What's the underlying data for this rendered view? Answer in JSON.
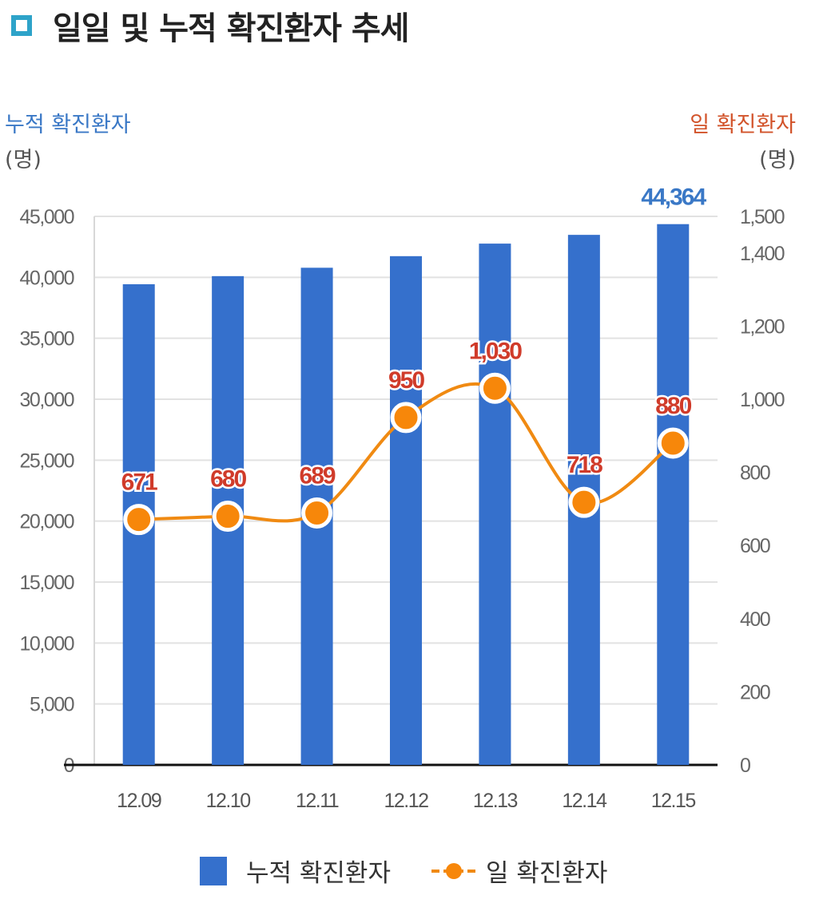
{
  "title": "일일 및 누적 확진환자 추세",
  "left_axis": {
    "title": "누적 확진환자",
    "unit": "(명)"
  },
  "right_axis": {
    "title": "일 확진환자",
    "unit": "(명)"
  },
  "colors": {
    "bar": "#3570cc",
    "line": "#f08a12",
    "marker": "#f7870a",
    "left_title": "#3a78c6",
    "right_title": "#d2532a",
    "line_label": "#d03b2a",
    "bar_label": "#3a78c6",
    "title_square": "#2ea3c9"
  },
  "legend": {
    "bar_label": "누적 확진환자",
    "line_label": "일 확진환자"
  },
  "chart_data": {
    "type": "bar+line",
    "categories": [
      "12.09",
      "12.10",
      "12.11",
      "12.12",
      "12.13",
      "12.14",
      "12.15"
    ],
    "series": [
      {
        "name": "누적 확진환자",
        "type": "bar",
        "axis": "left",
        "values": [
          39432,
          40098,
          40786,
          41736,
          42766,
          43484,
          44364
        ],
        "labels": [
          "",
          "",
          "",
          "",
          "",
          "",
          "44,364"
        ]
      },
      {
        "name": "일 확진환자",
        "type": "line",
        "axis": "right",
        "values": [
          671,
          680,
          689,
          950,
          1030,
          718,
          880
        ],
        "labels": [
          "671",
          "680",
          "689",
          "950",
          "1,030",
          "718",
          "880"
        ]
      }
    ],
    "left_axis": {
      "ylim": [
        0,
        45000
      ],
      "ticks": [
        0,
        5000,
        10000,
        15000,
        20000,
        25000,
        30000,
        35000,
        40000,
        45000
      ],
      "tick_labels": [
        "0",
        "5,000",
        "10,000",
        "15,000",
        "20,000",
        "25,000",
        "30,000",
        "35,000",
        "40,000",
        "45,000"
      ]
    },
    "right_axis": {
      "ylim": [
        0,
        1500
      ],
      "ticks": [
        0,
        200,
        400,
        600,
        800,
        1000,
        1200,
        1400,
        1500
      ],
      "tick_labels": [
        "0",
        "200",
        "400",
        "600",
        "800",
        "1,000",
        "1,200",
        "1,400",
        "1,500"
      ]
    },
    "grid": true,
    "legend_position": "bottom"
  }
}
